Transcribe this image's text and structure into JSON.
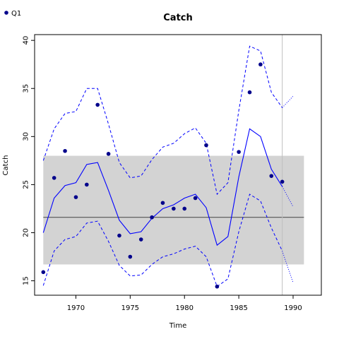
{
  "chart_data": {
    "type": "line",
    "title": "Catch",
    "xlabel": "Time",
    "ylabel": "Catch",
    "xlim": [
      1966.2,
      1992.6
    ],
    "ylim": [
      13.5,
      40.6
    ],
    "xticks": [
      1970,
      1975,
      1980,
      1985,
      1990
    ],
    "yticks": [
      15,
      20,
      25,
      30,
      35,
      40
    ],
    "grid": false,
    "legend_position": "top-left",
    "colors": {
      "points": "#00008b",
      "lines": "#0000ff",
      "band": "#d3d3d3",
      "mean_line": "#555555",
      "vline": "#c0c0c0"
    },
    "legend": [
      {
        "name": "Q1",
        "color": "#00008b",
        "marker": "point"
      }
    ],
    "observed": {
      "name": "Q1",
      "x": [
        1967,
        1968,
        1969,
        1970,
        1971,
        1972,
        1973,
        1974,
        1975,
        1976,
        1977,
        1978,
        1979,
        1980,
        1981,
        1982,
        1983,
        1984,
        1985,
        1986,
        1987,
        1988,
        1989
      ],
      "y": [
        15.9,
        25.7,
        28.5,
        23.7,
        25.0,
        33.3,
        28.2,
        19.7,
        17.5,
        19.3,
        21.6,
        23.1,
        22.5,
        22.5,
        23.6,
        29.1,
        14.4,
        null,
        28.4,
        34.6,
        37.5,
        25.9,
        25.3
      ]
    },
    "fitted": {
      "x": [
        1967,
        1968,
        1969,
        1970,
        1971,
        1972,
        1973,
        1974,
        1975,
        1976,
        1977,
        1978,
        1979,
        1980,
        1981,
        1982,
        1983,
        1984,
        1985,
        1986,
        1987,
        1988,
        1989
      ],
      "y": [
        20.0,
        23.6,
        24.9,
        25.2,
        27.1,
        27.3,
        24.4,
        21.3,
        19.9,
        20.1,
        21.5,
        22.5,
        22.9,
        23.6,
        24.0,
        22.6,
        18.7,
        19.6,
        25.8,
        30.8,
        30.0,
        26.6,
        24.8
      ]
    },
    "fitted_upper": {
      "x": [
        1967,
        1968,
        1969,
        1970,
        1971,
        1972,
        1973,
        1974,
        1975,
        1976,
        1977,
        1978,
        1979,
        1980,
        1981,
        1982,
        1983,
        1984,
        1985,
        1986,
        1987,
        1988,
        1989
      ],
      "y": [
        27.5,
        30.8,
        32.4,
        32.6,
        35.0,
        35.0,
        31.3,
        27.3,
        25.7,
        25.9,
        27.6,
        28.9,
        29.3,
        30.3,
        30.9,
        29.3,
        24.0,
        25.2,
        32.7,
        39.4,
        38.9,
        34.6,
        33.0
      ]
    },
    "fitted_lower": {
      "x": [
        1967,
        1968,
        1969,
        1970,
        1971,
        1972,
        1973,
        1974,
        1975,
        1976,
        1977,
        1978,
        1979,
        1980,
        1981,
        1982,
        1983,
        1984,
        1985,
        1986,
        1987,
        1988,
        1989
      ],
      "y": [
        14.5,
        18.1,
        19.3,
        19.6,
        21.0,
        21.2,
        19.1,
        16.6,
        15.5,
        15.6,
        16.7,
        17.5,
        17.8,
        18.3,
        18.6,
        17.5,
        14.4,
        15.2,
        20.1,
        24.0,
        23.3,
        20.5,
        18.1
      ]
    },
    "forecast": {
      "x": [
        1989,
        1990
      ],
      "y": [
        24.8,
        22.7
      ]
    },
    "forecast_upper": {
      "x": [
        1989,
        1990
      ],
      "y": [
        33.0,
        34.2
      ]
    },
    "forecast_lower": {
      "x": [
        1989,
        1990
      ],
      "y": [
        18.1,
        14.8
      ]
    },
    "band": {
      "x": [
        1967,
        1991
      ],
      "y": [
        16.7,
        28.0
      ]
    },
    "mean_line": {
      "x": [
        1967,
        1991
      ],
      "y": 21.6
    },
    "vline_x": 1989.0
  }
}
